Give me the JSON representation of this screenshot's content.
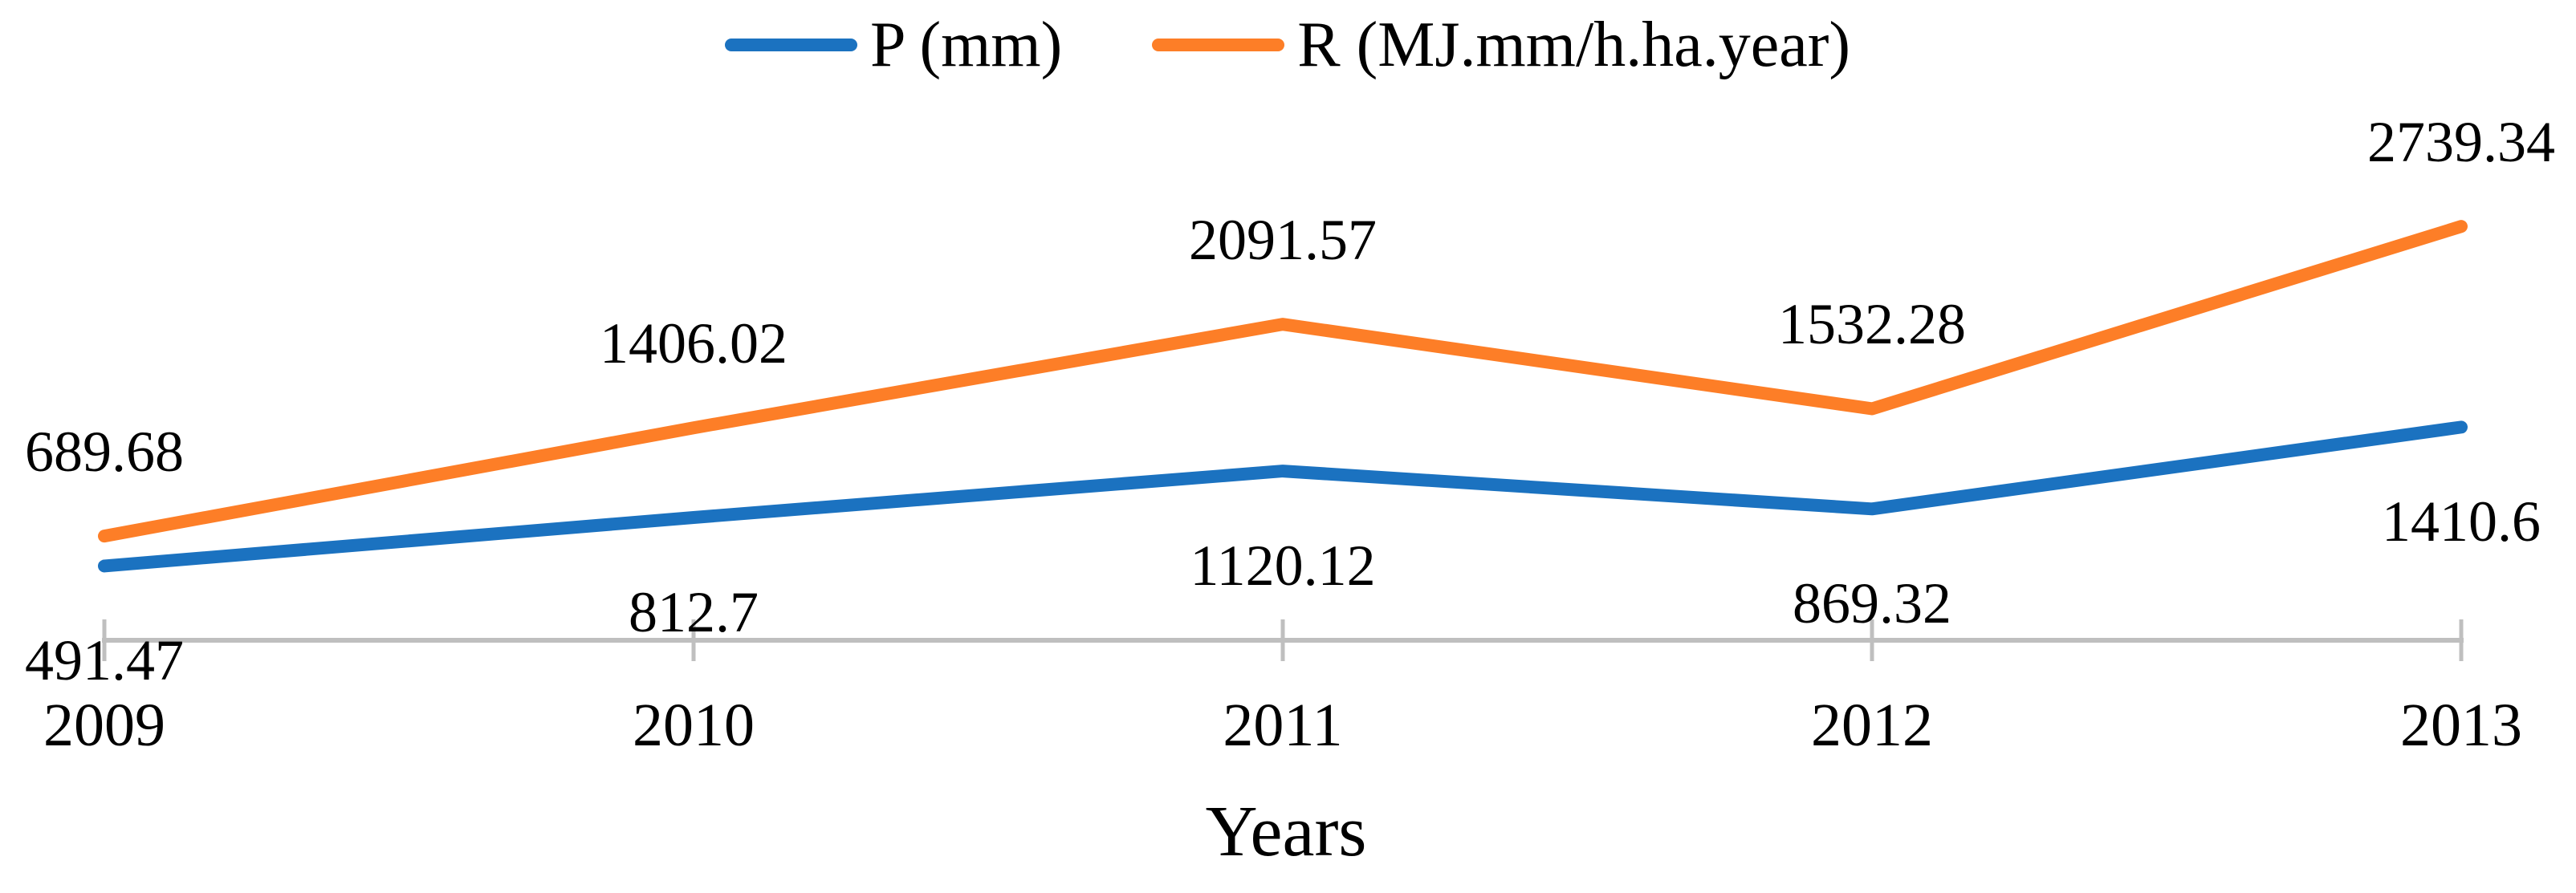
{
  "chart_data": {
    "type": "line",
    "categories": [
      "2009",
      "2010",
      "2011",
      "2012",
      "2013"
    ],
    "series": [
      {
        "name": "P (mm)",
        "color": "#1B72C0",
        "values": [
          491.47,
          812.7,
          1120.12,
          869.32,
          1410.6
        ],
        "labels": [
          "491.47",
          "812.7",
          "1120.12",
          "869.32",
          "1410.6"
        ],
        "label_position": "below"
      },
      {
        "name": "R (MJ.mm/h.ha.year)",
        "color": "#FD7E27",
        "values": [
          689.68,
          1406.02,
          2091.57,
          1532.28,
          2739.34
        ],
        "labels": [
          "689.68",
          "1406.02",
          "2091.57",
          "1532.28",
          "2739.34"
        ],
        "label_position": "above"
      }
    ],
    "title": "",
    "xlabel": "Years",
    "ylabel": "",
    "ylim": [
      0,
      3700
    ],
    "grid": false,
    "legend_position": "top",
    "value_axis": "hidden",
    "axis_color": "#BFBFBF",
    "tick_mark": "cross",
    "label_color": "#000000"
  }
}
